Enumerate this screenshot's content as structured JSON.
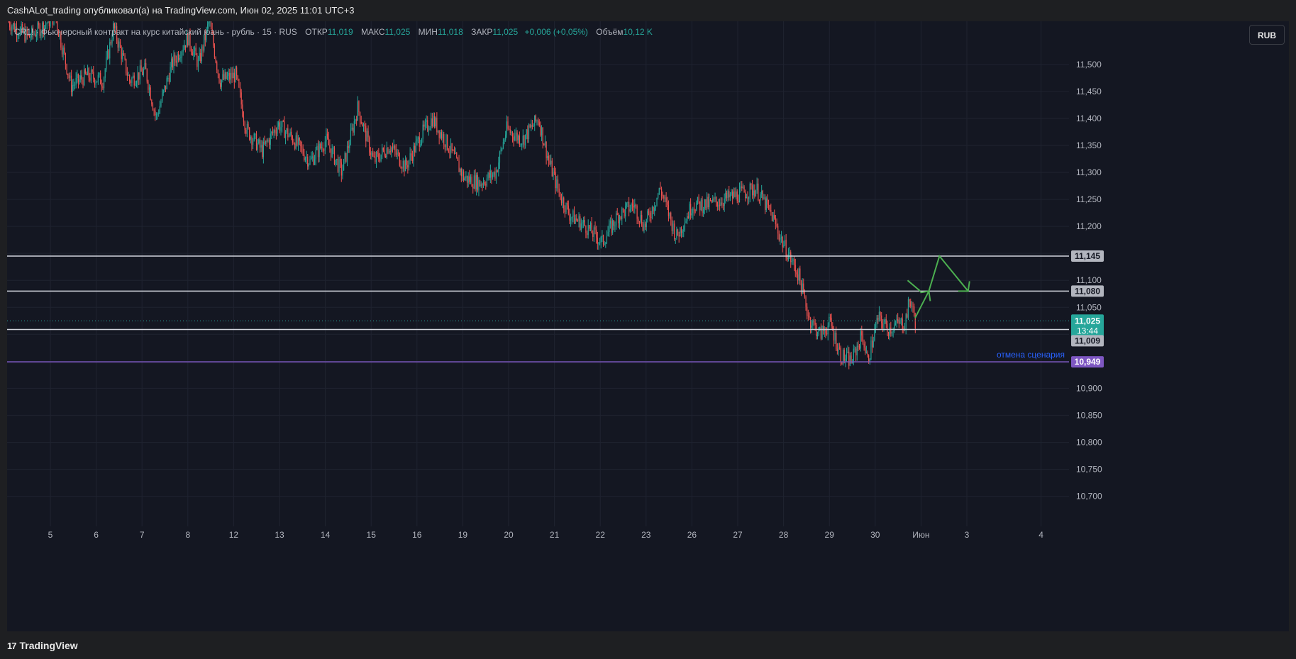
{
  "header": {
    "published_by": "CashALot_trading опубликовал(а) на TradingView.com, Июн 02, 2025 11:01 UTC+3"
  },
  "legend": {
    "symbol": "CR1! · Фьючерсный контракт на курс китайский юань - рубль · 15 · RUS",
    "open_label": "ОТКР",
    "open": "11,019",
    "high_label": "МАКС",
    "high": "11,025",
    "low_label": "МИН",
    "low": "11,018",
    "close_label": "ЗАКР",
    "close": "11,025",
    "change": "+0,006 (+0,05%)",
    "volume_label": "Объём",
    "volume": "10,12 K"
  },
  "currency_button": "RUB",
  "footer": {
    "brand": "TradingView",
    "logo_glyph": "17"
  },
  "colors": {
    "background": "#141722",
    "up": "#26a69a",
    "down": "#ef5350",
    "level_line": "#d1d4dc",
    "invalidation_line": "#7e57c2",
    "scenario_arrow": "#4caf50",
    "invalidation_text": "#2962ff"
  },
  "chart_data": {
    "type": "candlestick",
    "y_range": [
      10.66,
      11.58
    ],
    "y_ticks": [
      "11,500",
      "11,450",
      "11,400",
      "11,350",
      "11,300",
      "11,250",
      "11,200",
      "11,100",
      "11,050",
      "10,900",
      "10,850",
      "10,800",
      "10,750",
      "10,700"
    ],
    "x_ticks": [
      "5",
      "6",
      "7",
      "8",
      "12",
      "13",
      "14",
      "15",
      "16",
      "19",
      "20",
      "21",
      "22",
      "23",
      "26",
      "27",
      "28",
      "29",
      "30",
      "Июн",
      "3",
      "4"
    ],
    "price_path": [
      [
        0,
        11.58
      ],
      [
        0.02,
        11.55
      ],
      [
        0.045,
        11.59
      ],
      [
        0.06,
        11.46
      ],
      [
        0.075,
        11.48
      ],
      [
        0.09,
        11.47
      ],
      [
        0.1,
        11.57
      ],
      [
        0.115,
        11.47
      ],
      [
        0.13,
        11.49
      ],
      [
        0.14,
        11.4
      ],
      [
        0.155,
        11.5
      ],
      [
        0.17,
        11.55
      ],
      [
        0.18,
        11.5
      ],
      [
        0.19,
        11.58
      ],
      [
        0.2,
        11.47
      ],
      [
        0.215,
        11.48
      ],
      [
        0.225,
        11.38
      ],
      [
        0.24,
        11.34
      ],
      [
        0.255,
        11.39
      ],
      [
        0.27,
        11.36
      ],
      [
        0.285,
        11.32
      ],
      [
        0.3,
        11.36
      ],
      [
        0.315,
        11.3
      ],
      [
        0.33,
        11.42
      ],
      [
        0.345,
        11.32
      ],
      [
        0.36,
        11.35
      ],
      [
        0.375,
        11.31
      ],
      [
        0.39,
        11.37
      ],
      [
        0.4,
        11.4
      ],
      [
        0.415,
        11.35
      ],
      [
        0.43,
        11.29
      ],
      [
        0.445,
        11.28
      ],
      [
        0.46,
        11.3
      ],
      [
        0.47,
        11.38
      ],
      [
        0.485,
        11.36
      ],
      [
        0.5,
        11.4
      ],
      [
        0.51,
        11.32
      ],
      [
        0.52,
        11.26
      ],
      [
        0.53,
        11.22
      ],
      [
        0.545,
        11.2
      ],
      [
        0.56,
        11.17
      ],
      [
        0.575,
        11.22
      ],
      [
        0.59,
        11.24
      ],
      [
        0.6,
        11.2
      ],
      [
        0.615,
        11.27
      ],
      [
        0.63,
        11.18
      ],
      [
        0.645,
        11.24
      ],
      [
        0.66,
        11.24
      ],
      [
        0.675,
        11.25
      ],
      [
        0.69,
        11.26
      ],
      [
        0.705,
        11.27
      ],
      [
        0.72,
        11.22
      ],
      [
        0.73,
        11.17
      ],
      [
        0.745,
        11.11
      ],
      [
        0.755,
        11.03
      ],
      [
        0.765,
        11.0
      ],
      [
        0.775,
        11.02
      ],
      [
        0.785,
        10.96
      ],
      [
        0.795,
        10.95
      ],
      [
        0.805,
        11.0
      ],
      [
        0.81,
        10.95
      ],
      [
        0.82,
        11.03
      ],
      [
        0.83,
        11.01
      ],
      [
        0.84,
        11.02
      ],
      [
        0.845,
        11.02
      ],
      [
        0.85,
        11.065
      ],
      [
        0.855,
        11.025
      ]
    ],
    "price_labels": {
      "level_1": "11,145",
      "level_2": "11,080",
      "current": "11,025",
      "countdown": "13:44",
      "level_3": "11,009",
      "invalidation": "10,949"
    },
    "levels": [
      11.145,
      11.08,
      11.009
    ],
    "current_price": 11.025,
    "invalidation_level": 10.949,
    "invalidation_text": "отмена сценария",
    "scenario_path": [
      [
        0.855,
        11.03
      ],
      [
        0.868,
        11.08
      ],
      [
        0.878,
        11.145
      ],
      [
        0.905,
        11.08
      ]
    ],
    "scenario_arrow_up": [
      [
        0.848,
        11.1
      ],
      [
        0.86,
        11.08
      ]
    ],
    "grid": true
  }
}
